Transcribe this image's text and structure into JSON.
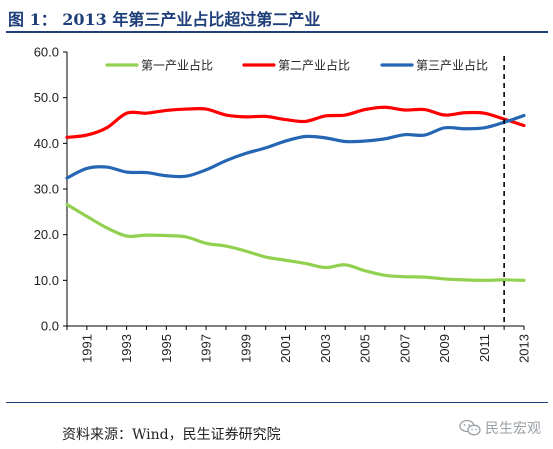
{
  "header": {
    "title": "图 1：  2013 年第三产业占比超过第二产业"
  },
  "footer": {
    "source": "资料来源：Wind，民生证券研究院",
    "watermark_text": "民生宏观",
    "watermark_icon": "wechat-icon"
  },
  "chart_data": {
    "type": "line",
    "title": "",
    "xlabel": "",
    "ylabel": "",
    "x": [
      1990,
      1991,
      1992,
      1993,
      1994,
      1995,
      1996,
      1997,
      1998,
      1999,
      2000,
      2001,
      2002,
      2003,
      2004,
      2005,
      2006,
      2007,
      2008,
      2009,
      2010,
      2011,
      2012,
      2013
    ],
    "xticks": [
      "1991",
      "1993",
      "1995",
      "1997",
      "1999",
      "2001",
      "2003",
      "2005",
      "2007",
      "2009",
      "2011",
      "2013"
    ],
    "yticks": [
      "0.0",
      "10.0",
      "20.0",
      "30.0",
      "40.0",
      "50.0",
      "60.0"
    ],
    "ylim": [
      0,
      60
    ],
    "series": [
      {
        "name": "第一产业占比",
        "color": "#92d050",
        "values": [
          26.6,
          24.0,
          21.5,
          19.7,
          19.9,
          19.8,
          19.5,
          18.1,
          17.5,
          16.4,
          15.1,
          14.4,
          13.7,
          12.8,
          13.4,
          12.1,
          11.1,
          10.8,
          10.7,
          10.3,
          10.1,
          10.0,
          10.1,
          10.0
        ]
      },
      {
        "name": "第二产业占比",
        "color": "#ff0000",
        "values": [
          41.3,
          41.8,
          43.4,
          46.6,
          46.6,
          47.2,
          47.5,
          47.5,
          46.2,
          45.8,
          45.9,
          45.2,
          44.8,
          46.0,
          46.2,
          47.4,
          47.9,
          47.3,
          47.4,
          46.2,
          46.7,
          46.6,
          45.3,
          43.9
        ]
      },
      {
        "name": "第三产业占比",
        "color": "#2466b3",
        "values": [
          32.4,
          34.5,
          34.8,
          33.7,
          33.6,
          32.9,
          32.8,
          34.2,
          36.2,
          37.8,
          39.0,
          40.5,
          41.5,
          41.2,
          40.4,
          40.5,
          41.0,
          41.9,
          41.8,
          43.4,
          43.2,
          43.4,
          44.6,
          46.1
        ]
      }
    ],
    "reference_line": {
      "x": 2012,
      "style": "dashed",
      "color": "#000000"
    },
    "legend": "top",
    "grid": false
  }
}
